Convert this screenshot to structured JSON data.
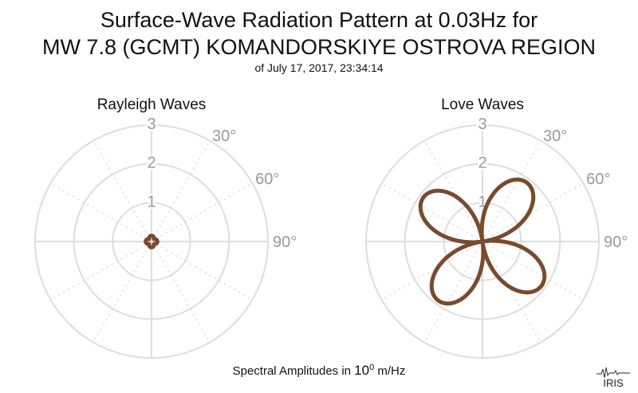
{
  "title": {
    "line1": "Surface-Wave Radiation Pattern at 0.03Hz for",
    "line2": "MW 7.8 (GCMT) KOMANDORSKIYE OSTROVA REGION",
    "subtitle": "of July 17, 2017, 23:34:14"
  },
  "footer": {
    "prefix": "Spectral Amplitudes in ",
    "base": "10",
    "exponent": "0",
    "unit": " m/Hz"
  },
  "logo_text": "IRIS",
  "colors": {
    "pattern": "#7a4a2e",
    "grid": "#dddddd",
    "labels": "#999999"
  },
  "chart_data": [
    {
      "type": "polar",
      "title": "Rayleigh Waves",
      "radial_ticks": [
        1,
        2,
        3
      ],
      "radial_max": 3,
      "angle_labels": [
        "30°",
        "60°",
        "90°"
      ],
      "angle_label_degrees": [
        30,
        60,
        90
      ],
      "rotation": "clockwise from north",
      "pattern": {
        "kind": "four-lobe",
        "peak_amplitude": 0.15,
        "lobe_axes_deg": [
          0,
          90,
          180,
          270
        ]
      }
    },
    {
      "type": "polar",
      "title": "Love Waves",
      "radial_ticks": [
        1,
        2,
        3
      ],
      "radial_max": 3,
      "angle_labels": [
        "30°",
        "60°",
        "90°"
      ],
      "angle_label_degrees": [
        30,
        60,
        90
      ],
      "rotation": "clockwise from north",
      "pattern": {
        "kind": "four-lobe",
        "peak_amplitude": 1.9,
        "lobe_axes_deg": [
          37,
          143,
          217,
          323
        ]
      }
    }
  ]
}
